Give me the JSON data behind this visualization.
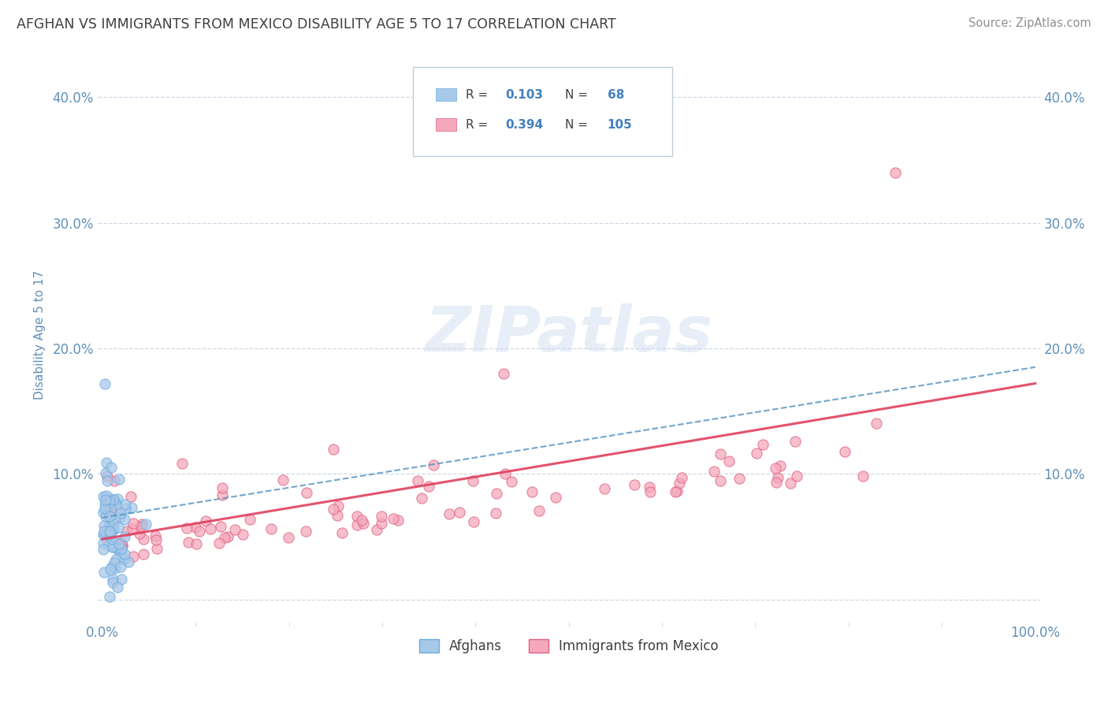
{
  "title": "AFGHAN VS IMMIGRANTS FROM MEXICO DISABILITY AGE 5 TO 17 CORRELATION CHART",
  "source": "Source: ZipAtlas.com",
  "ylabel": "Disability Age 5 to 17",
  "afghans_R": 0.103,
  "afghans_N": 68,
  "mexico_R": 0.394,
  "mexico_N": 105,
  "afghan_color": "#a8c8e8",
  "afghan_edge": "#6aabe0",
  "mexico_color": "#f5a8bc",
  "mexico_edge": "#e06080",
  "trend_blue_color": "#5090c0",
  "trend_blue_dash": "--",
  "trend_pink_color": "#e04060",
  "trend_pink_dash": "-",
  "bg_color": "#ffffff",
  "grid_color": "#c8d4e4",
  "title_color": "#404040",
  "axis_color": "#6090b8",
  "source_color": "#909090",
  "watermark_color": "#d0dff0",
  "watermark_alpha": 0.5,
  "legend_edge_color": "#c0ccd8",
  "legend_text_color": "#404040",
  "legend_val_color": "#4080c0"
}
